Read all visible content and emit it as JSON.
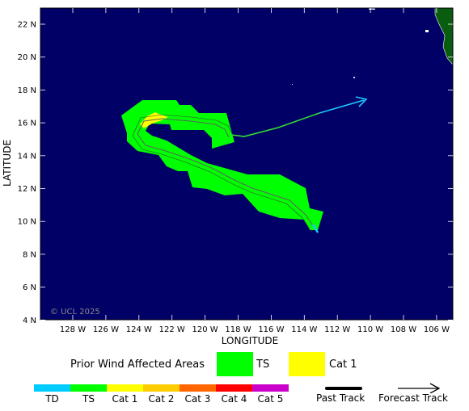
{
  "map": {
    "copyright": "© UCL 2025",
    "lat_labels": [
      "22 N",
      "20 N",
      "18 N",
      "16 N",
      "14 N",
      "12 N",
      "10 N",
      "8 N",
      "6 N",
      "4 N"
    ],
    "lon_labels": [
      "128 W",
      "126 W",
      "124 W",
      "122 W",
      "120 W",
      "118 W",
      "116 W",
      "114 W",
      "112 W",
      "110 W",
      "108 W",
      "106 W"
    ],
    "xlabel": "LONGITUDE",
    "ylabel": "LATITUDE",
    "colors": {
      "ocean": "#000066",
      "land": "#0a5c10",
      "ts_area": "#00ff00",
      "cat1_area": "#ffff00",
      "forecast_track": "#1ec8ff"
    }
  },
  "legend": {
    "prior_title": "Prior Wind Affected Areas",
    "prior_items": [
      {
        "label": "TS",
        "color": "#00ff00"
      },
      {
        "label": "Cat 1",
        "color": "#ffff00"
      }
    ],
    "scale": [
      {
        "label": "TD",
        "color": "#00ccff"
      },
      {
        "label": "TS",
        "color": "#00ff00"
      },
      {
        "label": "Cat 1",
        "color": "#ffff00"
      },
      {
        "label": "Cat 2",
        "color": "#ffcc00"
      },
      {
        "label": "Cat 3",
        "color": "#ff6600"
      },
      {
        "label": "Cat 4",
        "color": "#ff0000"
      },
      {
        "label": "Cat 5",
        "color": "#cc00cc"
      }
    ],
    "past_track_label": "Past Track",
    "forecast_track_label": "Forecast Track"
  }
}
